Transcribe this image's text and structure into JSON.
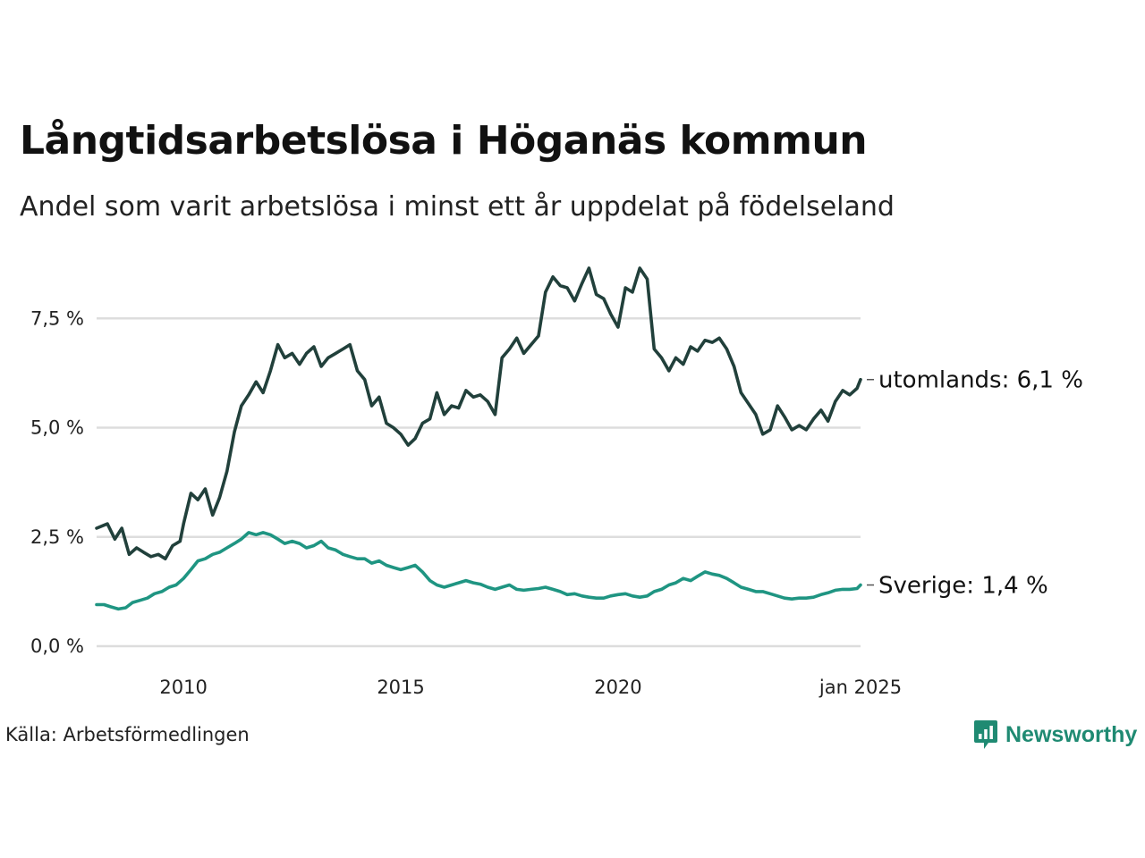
{
  "title": "Långtidsarbetslösa i Höganäs kommun",
  "subtitle": "Andel som varit arbetslösa i minst ett år uppdelat på födelseland",
  "source": "Källa: Arbetsförmedlingen",
  "brand": {
    "name": "Newsworthy",
    "icon": "newsworthy-logo-icon",
    "color": "#1f8a72"
  },
  "chart_data": {
    "type": "line",
    "title": "Långtidsarbetslösa i Höganäs kommun",
    "subtitle": "Andel som varit arbetslösa i minst ett år uppdelat på födelseland",
    "ylim": [
      0,
      8.8
    ],
    "xlim": [
      2008.0,
      2025.0
    ],
    "y_ticks": [
      0,
      2.5,
      5,
      7.5
    ],
    "y_tick_labels": [
      "0,0 %",
      "2,5 %",
      "5,0 %",
      "7,5 %"
    ],
    "x_ticks": [
      2010,
      2015,
      2020,
      2025
    ],
    "x_tick_labels": [
      "2010",
      "2015",
      "2020",
      "jan 2025"
    ],
    "grid": "horizontal",
    "legend": "end-labels",
    "series": [
      {
        "name": "utomlands",
        "end_label": "utomlands: 6,1 %",
        "color": "#21403b",
        "points": [
          [
            2008.0,
            2.7
          ],
          [
            2008.25,
            2.8
          ],
          [
            2008.42,
            2.45
          ],
          [
            2008.58,
            2.7
          ],
          [
            2008.75,
            2.1
          ],
          [
            2008.92,
            2.25
          ],
          [
            2009.08,
            2.15
          ],
          [
            2009.25,
            2.05
          ],
          [
            2009.42,
            2.1
          ],
          [
            2009.58,
            2.0
          ],
          [
            2009.75,
            2.3
          ],
          [
            2009.92,
            2.4
          ],
          [
            2010.0,
            2.8
          ],
          [
            2010.17,
            3.5
          ],
          [
            2010.33,
            3.35
          ],
          [
            2010.5,
            3.6
          ],
          [
            2010.67,
            3.0
          ],
          [
            2010.83,
            3.4
          ],
          [
            2011.0,
            4.0
          ],
          [
            2011.17,
            4.9
          ],
          [
            2011.33,
            5.5
          ],
          [
            2011.5,
            5.75
          ],
          [
            2011.67,
            6.05
          ],
          [
            2011.83,
            5.8
          ],
          [
            2012.0,
            6.3
          ],
          [
            2012.17,
            6.9
          ],
          [
            2012.33,
            6.6
          ],
          [
            2012.5,
            6.7
          ],
          [
            2012.67,
            6.45
          ],
          [
            2012.83,
            6.7
          ],
          [
            2013.0,
            6.85
          ],
          [
            2013.17,
            6.4
          ],
          [
            2013.33,
            6.6
          ],
          [
            2013.5,
            6.7
          ],
          [
            2013.67,
            6.8
          ],
          [
            2013.83,
            6.9
          ],
          [
            2014.0,
            6.3
          ],
          [
            2014.17,
            6.1
          ],
          [
            2014.33,
            5.5
          ],
          [
            2014.5,
            5.7
          ],
          [
            2014.67,
            5.1
          ],
          [
            2014.83,
            5.0
          ],
          [
            2015.0,
            4.85
          ],
          [
            2015.17,
            4.6
          ],
          [
            2015.33,
            4.75
          ],
          [
            2015.5,
            5.1
          ],
          [
            2015.67,
            5.2
          ],
          [
            2015.83,
            5.8
          ],
          [
            2016.0,
            5.3
          ],
          [
            2016.17,
            5.5
          ],
          [
            2016.33,
            5.45
          ],
          [
            2016.5,
            5.85
          ],
          [
            2016.67,
            5.7
          ],
          [
            2016.83,
            5.75
          ],
          [
            2017.0,
            5.6
          ],
          [
            2017.17,
            5.3
          ],
          [
            2017.33,
            6.6
          ],
          [
            2017.5,
            6.8
          ],
          [
            2017.67,
            7.05
          ],
          [
            2017.83,
            6.7
          ],
          [
            2018.0,
            6.9
          ],
          [
            2018.17,
            7.1
          ],
          [
            2018.33,
            8.1
          ],
          [
            2018.5,
            8.45
          ],
          [
            2018.67,
            8.25
          ],
          [
            2018.83,
            8.2
          ],
          [
            2019.0,
            7.9
          ],
          [
            2019.17,
            8.3
          ],
          [
            2019.33,
            8.65
          ],
          [
            2019.5,
            8.05
          ],
          [
            2019.67,
            7.95
          ],
          [
            2019.83,
            7.6
          ],
          [
            2020.0,
            7.3
          ],
          [
            2020.17,
            8.2
          ],
          [
            2020.33,
            8.1
          ],
          [
            2020.5,
            8.65
          ],
          [
            2020.67,
            8.4
          ],
          [
            2020.83,
            6.8
          ],
          [
            2021.0,
            6.6
          ],
          [
            2021.17,
            6.3
          ],
          [
            2021.33,
            6.6
          ],
          [
            2021.5,
            6.45
          ],
          [
            2021.67,
            6.85
          ],
          [
            2021.83,
            6.75
          ],
          [
            2022.0,
            7.0
          ],
          [
            2022.17,
            6.95
          ],
          [
            2022.33,
            7.05
          ],
          [
            2022.5,
            6.8
          ],
          [
            2022.67,
            6.4
          ],
          [
            2022.83,
            5.8
          ],
          [
            2023.0,
            5.55
          ],
          [
            2023.17,
            5.3
          ],
          [
            2023.33,
            4.85
          ],
          [
            2023.5,
            4.95
          ],
          [
            2023.67,
            5.5
          ],
          [
            2023.83,
            5.25
          ],
          [
            2024.0,
            4.95
          ],
          [
            2024.17,
            5.05
          ],
          [
            2024.33,
            4.95
          ],
          [
            2024.5,
            5.2
          ],
          [
            2024.67,
            5.4
          ],
          [
            2024.83,
            5.15
          ],
          [
            2025.0,
            5.6
          ],
          [
            2025.17,
            5.85
          ],
          [
            2025.33,
            5.75
          ],
          [
            2025.5,
            5.9
          ],
          [
            2025.58,
            6.1
          ]
        ]
      },
      {
        "name": "Sverige",
        "end_label": "Sverige: 1,4 %",
        "color": "#1f9582",
        "points": [
          [
            2008.0,
            0.95
          ],
          [
            2008.17,
            0.95
          ],
          [
            2008.33,
            0.9
          ],
          [
            2008.5,
            0.85
          ],
          [
            2008.67,
            0.88
          ],
          [
            2008.83,
            1.0
          ],
          [
            2009.0,
            1.05
          ],
          [
            2009.17,
            1.1
          ],
          [
            2009.33,
            1.2
          ],
          [
            2009.5,
            1.25
          ],
          [
            2009.67,
            1.35
          ],
          [
            2009.83,
            1.4
          ],
          [
            2010.0,
            1.55
          ],
          [
            2010.17,
            1.75
          ],
          [
            2010.33,
            1.95
          ],
          [
            2010.5,
            2.0
          ],
          [
            2010.67,
            2.1
          ],
          [
            2010.83,
            2.15
          ],
          [
            2011.0,
            2.25
          ],
          [
            2011.17,
            2.35
          ],
          [
            2011.33,
            2.45
          ],
          [
            2011.5,
            2.6
          ],
          [
            2011.67,
            2.55
          ],
          [
            2011.83,
            2.6
          ],
          [
            2012.0,
            2.55
          ],
          [
            2012.17,
            2.45
          ],
          [
            2012.33,
            2.35
          ],
          [
            2012.5,
            2.4
          ],
          [
            2012.67,
            2.35
          ],
          [
            2012.83,
            2.25
          ],
          [
            2013.0,
            2.3
          ],
          [
            2013.17,
            2.4
          ],
          [
            2013.33,
            2.25
          ],
          [
            2013.5,
            2.2
          ],
          [
            2013.67,
            2.1
          ],
          [
            2013.83,
            2.05
          ],
          [
            2014.0,
            2.0
          ],
          [
            2014.17,
            2.0
          ],
          [
            2014.33,
            1.9
          ],
          [
            2014.5,
            1.95
          ],
          [
            2014.67,
            1.85
          ],
          [
            2014.83,
            1.8
          ],
          [
            2015.0,
            1.75
          ],
          [
            2015.17,
            1.8
          ],
          [
            2015.33,
            1.85
          ],
          [
            2015.5,
            1.7
          ],
          [
            2015.67,
            1.5
          ],
          [
            2015.83,
            1.4
          ],
          [
            2016.0,
            1.35
          ],
          [
            2016.17,
            1.4
          ],
          [
            2016.33,
            1.45
          ],
          [
            2016.5,
            1.5
          ],
          [
            2016.67,
            1.45
          ],
          [
            2016.83,
            1.42
          ],
          [
            2017.0,
            1.35
          ],
          [
            2017.17,
            1.3
          ],
          [
            2017.33,
            1.35
          ],
          [
            2017.5,
            1.4
          ],
          [
            2017.67,
            1.3
          ],
          [
            2017.83,
            1.28
          ],
          [
            2018.0,
            1.3
          ],
          [
            2018.17,
            1.32
          ],
          [
            2018.33,
            1.35
          ],
          [
            2018.5,
            1.3
          ],
          [
            2018.67,
            1.25
          ],
          [
            2018.83,
            1.18
          ],
          [
            2019.0,
            1.2
          ],
          [
            2019.17,
            1.15
          ],
          [
            2019.33,
            1.12
          ],
          [
            2019.5,
            1.1
          ],
          [
            2019.67,
            1.1
          ],
          [
            2019.83,
            1.15
          ],
          [
            2020.0,
            1.18
          ],
          [
            2020.17,
            1.2
          ],
          [
            2020.33,
            1.15
          ],
          [
            2020.5,
            1.12
          ],
          [
            2020.67,
            1.15
          ],
          [
            2020.83,
            1.25
          ],
          [
            2021.0,
            1.3
          ],
          [
            2021.17,
            1.4
          ],
          [
            2021.33,
            1.45
          ],
          [
            2021.5,
            1.55
          ],
          [
            2021.67,
            1.5
          ],
          [
            2021.83,
            1.6
          ],
          [
            2022.0,
            1.7
          ],
          [
            2022.17,
            1.65
          ],
          [
            2022.33,
            1.62
          ],
          [
            2022.5,
            1.55
          ],
          [
            2022.67,
            1.45
          ],
          [
            2022.83,
            1.35
          ],
          [
            2023.0,
            1.3
          ],
          [
            2023.17,
            1.25
          ],
          [
            2023.33,
            1.25
          ],
          [
            2023.5,
            1.2
          ],
          [
            2023.67,
            1.15
          ],
          [
            2023.83,
            1.1
          ],
          [
            2024.0,
            1.08
          ],
          [
            2024.17,
            1.1
          ],
          [
            2024.33,
            1.1
          ],
          [
            2024.5,
            1.12
          ],
          [
            2024.67,
            1.18
          ],
          [
            2024.83,
            1.22
          ],
          [
            2025.0,
            1.28
          ],
          [
            2025.17,
            1.3
          ],
          [
            2025.33,
            1.3
          ],
          [
            2025.5,
            1.32
          ],
          [
            2025.58,
            1.4
          ]
        ]
      }
    ]
  }
}
